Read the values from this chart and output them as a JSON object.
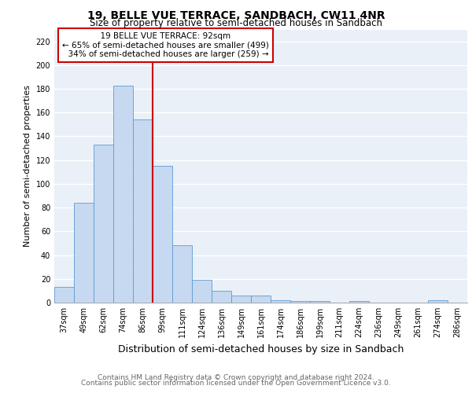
{
  "title1": "19, BELLE VUE TERRACE, SANDBACH, CW11 4NR",
  "title2": "Size of property relative to semi-detached houses in Sandbach",
  "xlabel": "Distribution of semi-detached houses by size in Sandbach",
  "ylabel": "Number of semi-detached properties",
  "footer1": "Contains HM Land Registry data © Crown copyright and database right 2024.",
  "footer2": "Contains public sector information licensed under the Open Government Licence v3.0.",
  "categories": [
    "37sqm",
    "49sqm",
    "62sqm",
    "74sqm",
    "86sqm",
    "99sqm",
    "111sqm",
    "124sqm",
    "136sqm",
    "149sqm",
    "161sqm",
    "174sqm",
    "186sqm",
    "199sqm",
    "211sqm",
    "224sqm",
    "236sqm",
    "249sqm",
    "261sqm",
    "274sqm",
    "286sqm"
  ],
  "values": [
    13,
    84,
    133,
    183,
    154,
    115,
    48,
    19,
    10,
    6,
    6,
    2,
    1,
    1,
    0,
    1,
    0,
    0,
    0,
    2,
    0
  ],
  "bar_color": "#c6d9f0",
  "bar_edge_color": "#5b9bd5",
  "vline_color": "#cc0000",
  "annotation_box_color": "#cc0000",
  "property_label": "19 BELLE VUE TERRACE: 92sqm",
  "pct_smaller": 65,
  "pct_smaller_n": 499,
  "pct_larger": 34,
  "pct_larger_n": 259,
  "ylim": [
    0,
    230
  ],
  "yticks": [
    0,
    20,
    40,
    60,
    80,
    100,
    120,
    140,
    160,
    180,
    200,
    220
  ],
  "bg_color": "#eaf0f8",
  "grid_color": "#ffffff",
  "title1_fontsize": 10,
  "title2_fontsize": 8.5,
  "xlabel_fontsize": 9,
  "ylabel_fontsize": 8,
  "tick_fontsize": 7,
  "annot_fontsize": 7.5,
  "footer_fontsize": 6.5
}
